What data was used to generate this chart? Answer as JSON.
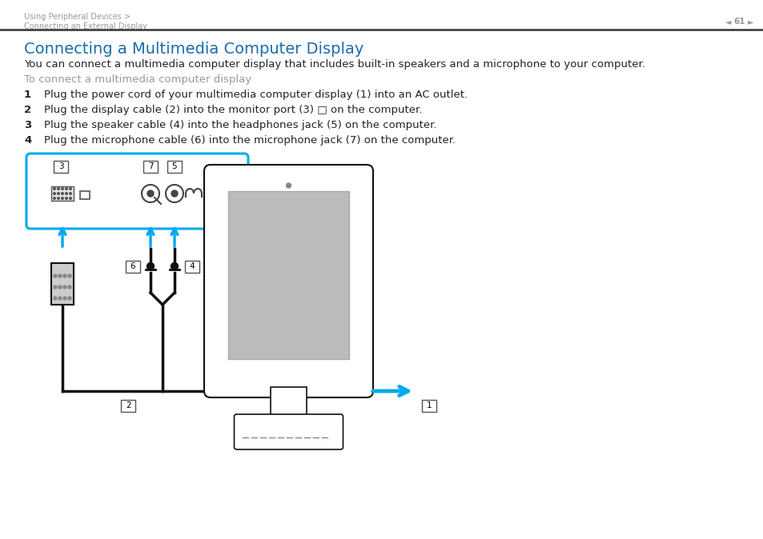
{
  "bg_color": "#ffffff",
  "header_text_line1": "Using Peripheral Devices >",
  "header_text_line2": "Connecting an External Display",
  "header_color": "#999999",
  "page_number": "61",
  "title": "Connecting a Multimedia Computer Display",
  "title_color": "#1a6daa",
  "title_fontsize": 14,
  "body_text": "You can connect a multimedia computer display that includes built-in speakers and a microphone to your computer.",
  "body_color": "#222222",
  "body_fontsize": 9.5,
  "subheading": "To connect a multimedia computer display",
  "subheading_color": "#999999",
  "subheading_fontsize": 9.5,
  "steps": [
    "Plug the power cord of your multimedia computer display (1) into an AC outlet.",
    "Plug the display cable (2) into the monitor port (3) □ on the computer.",
    "Plug the speaker cable (4) into the headphones jack (5) on the computer.",
    "Plug the microphone cable (6) into the microphone jack (7) on the computer."
  ],
  "step_color": "#222222",
  "step_fontsize": 9.5,
  "cyan_color": "#00aaee",
  "dark_line_color": "#111111",
  "arrow_color": "#00aaee"
}
